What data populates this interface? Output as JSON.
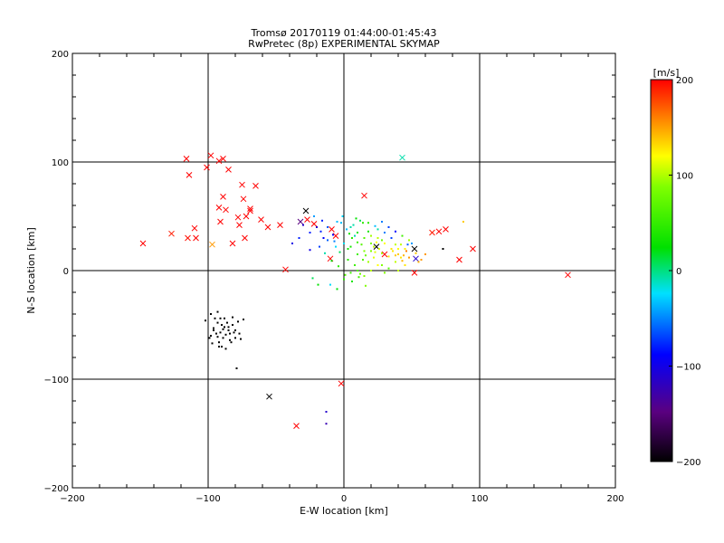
{
  "chart_data": {
    "type": "scatter",
    "title": "Tromsø 20170119 01:44:00-01:45:43",
    "subtitle": "RwPretec (8p) EXPERIMENTAL SKYMAP",
    "xlabel": "E-W location [km]",
    "ylabel": "N-S location [km]",
    "xlim": [
      -200,
      200
    ],
    "ylim": [
      -200,
      200
    ],
    "xticks": [
      -200,
      -100,
      0,
      100,
      200
    ],
    "yticks": [
      -200,
      -100,
      0,
      100,
      200
    ],
    "xtick_labels": [
      "−200",
      "−100",
      "0",
      "100",
      "200"
    ],
    "ytick_labels": [
      "−200",
      "−100",
      "0",
      "100",
      "200"
    ],
    "grid": true,
    "colorbar": {
      "label": "[m/s]",
      "range": [
        -200,
        200
      ],
      "ticks": [
        200,
        100,
        0,
        -100,
        -200
      ],
      "tick_labels": [
        "200",
        "100",
        "0",
        "−100",
        "−200"
      ],
      "colormap": "rainbow (black-violet-blue-cyan-green-yellow-red)"
    },
    "series": [
      {
        "marker": "x",
        "points": [
          [
            -148,
            25
          ],
          [
            -127,
            34
          ],
          [
            -116,
            103
          ],
          [
            -114,
            88
          ],
          [
            -115,
            30
          ],
          [
            -110,
            39
          ],
          [
            -109,
            30
          ],
          [
            -101,
            95
          ],
          [
            -98,
            106
          ],
          [
            -97,
            24
          ],
          [
            -92,
            101
          ],
          [
            -89,
            103
          ],
          [
            -91,
            45
          ],
          [
            -92,
            58
          ],
          [
            -89,
            68
          ],
          [
            -87,
            56
          ],
          [
            -85,
            93
          ],
          [
            -82,
            25
          ],
          [
            -78,
            49
          ],
          [
            -77,
            42
          ],
          [
            -75,
            79
          ],
          [
            -74,
            66
          ],
          [
            -73,
            30
          ],
          [
            -72,
            50
          ],
          [
            -69,
            55
          ],
          [
            -69,
            57
          ],
          [
            -65,
            78
          ],
          [
            -61,
            47
          ],
          [
            -56,
            40
          ],
          [
            -47,
            42
          ],
          [
            -43,
            1
          ],
          [
            -32,
            45
          ],
          [
            -27,
            47
          ],
          [
            -22,
            43
          ],
          [
            -28,
            55
          ],
          [
            -10,
            11
          ],
          [
            -9,
            38
          ],
          [
            -6,
            32
          ],
          [
            -2,
            -104
          ],
          [
            15,
            69
          ],
          [
            24,
            22
          ],
          [
            30,
            15
          ],
          [
            43,
            104
          ],
          [
            52,
            -2
          ],
          [
            52,
            20
          ],
          [
            53,
            11
          ],
          [
            65,
            35
          ],
          [
            70,
            36
          ],
          [
            75,
            38
          ],
          [
            85,
            10
          ],
          [
            95,
            20
          ],
          [
            165,
            -4
          ],
          [
            -35,
            -143
          ],
          [
            -55,
            -116
          ]
        ],
        "values": [
          200,
          190,
          200,
          200,
          195,
          200,
          200,
          200,
          200,
          140,
          200,
          200,
          200,
          200,
          200,
          200,
          200,
          200,
          200,
          200,
          200,
          200,
          200,
          200,
          200,
          200,
          200,
          200,
          200,
          200,
          200,
          -150,
          200,
          200,
          -200,
          200,
          200,
          200,
          200,
          200,
          -200,
          200,
          -20,
          200,
          -200,
          -120,
          190,
          200,
          200,
          200,
          200,
          200,
          200,
          -200
        ]
      },
      {
        "marker": "dot",
        "points": [
          [
            -93,
            -48
          ],
          [
            -96,
            -53
          ],
          [
            -91,
            -57
          ],
          [
            -98,
            -60
          ],
          [
            -85,
            -55
          ],
          [
            -80,
            -62
          ],
          [
            -92,
            -66
          ],
          [
            -88,
            -52
          ],
          [
            -84,
            -58
          ],
          [
            -90,
            -70
          ],
          [
            -95,
            -44
          ],
          [
            -82,
            -50
          ],
          [
            -77,
            -58
          ],
          [
            -89,
            -62
          ],
          [
            -94,
            -58
          ],
          [
            -86,
            -48
          ],
          [
            -91,
            -44
          ],
          [
            -97,
            -67
          ],
          [
            -83,
            -66
          ],
          [
            -87,
            -72
          ],
          [
            -80,
            -55
          ],
          [
            -98,
            -40
          ],
          [
            -93,
            -38
          ],
          [
            -76,
            -63
          ],
          [
            -89,
            -54
          ],
          [
            -82,
            -43
          ],
          [
            -79,
            -90
          ],
          [
            -85,
            -52
          ],
          [
            -102,
            -46
          ],
          [
            -90,
            -50
          ],
          [
            -87,
            -59
          ],
          [
            -93,
            -61
          ],
          [
            -74,
            -45
          ],
          [
            -84,
            -64
          ],
          [
            -96,
            -55
          ],
          [
            -88,
            -44
          ],
          [
            -81,
            -57
          ],
          [
            -99,
            -62
          ],
          [
            -78,
            -47
          ],
          [
            -92,
            -70
          ],
          [
            -20,
            40
          ],
          [
            -15,
            30
          ],
          [
            -25,
            35
          ],
          [
            -5,
            45
          ],
          [
            5,
            40
          ],
          [
            10,
            35
          ],
          [
            15,
            30
          ],
          [
            20,
            25
          ],
          [
            25,
            30
          ],
          [
            30,
            25
          ],
          [
            35,
            20
          ],
          [
            40,
            15
          ],
          [
            45,
            20
          ],
          [
            50,
            25
          ],
          [
            0,
            25
          ],
          [
            -3,
            17
          ],
          [
            3,
            10
          ],
          [
            8,
            5
          ],
          [
            12,
            -3
          ],
          [
            18,
            8
          ],
          [
            22,
            12
          ],
          [
            28,
            5
          ],
          [
            33,
            2
          ],
          [
            38,
            8
          ],
          [
            42,
            12
          ],
          [
            5,
            22
          ],
          [
            10,
            15
          ],
          [
            15,
            18
          ],
          [
            20,
            32
          ],
          [
            25,
            38
          ],
          [
            30,
            35
          ],
          [
            35,
            30
          ],
          [
            -10,
            -13
          ],
          [
            -5,
            -17
          ],
          [
            0,
            -8
          ],
          [
            10,
            0
          ],
          [
            15,
            -5
          ],
          [
            20,
            0
          ],
          [
            25,
            5
          ],
          [
            -18,
            22
          ],
          [
            -12,
            28
          ],
          [
            -8,
            33
          ],
          [
            2,
            38
          ],
          [
            7,
            42
          ],
          [
            12,
            46
          ],
          [
            18,
            44
          ],
          [
            23,
            41
          ],
          [
            28,
            45
          ],
          [
            33,
            40
          ],
          [
            38,
            36
          ],
          [
            43,
            32
          ],
          [
            48,
            28
          ],
          [
            53,
            16
          ],
          [
            57,
            10
          ],
          [
            -22,
            50
          ],
          [
            -1,
            50
          ],
          [
            9,
            48
          ],
          [
            14,
            44
          ],
          [
            -14,
            16
          ],
          [
            -9,
            9
          ],
          [
            -4,
            4
          ],
          [
            1,
            -4
          ],
          [
            6,
            -10
          ],
          [
            11,
            -6
          ],
          [
            16,
            -14
          ],
          [
            -17,
            36
          ],
          [
            -7,
            27
          ],
          [
            3,
            20
          ],
          [
            13,
            24
          ],
          [
            23,
            17
          ],
          [
            33,
            13
          ],
          [
            43,
            9
          ],
          [
            47,
            24
          ],
          [
            -2,
            44
          ],
          [
            8,
            32
          ],
          [
            18,
            36
          ],
          [
            28,
            28
          ],
          [
            38,
            24
          ],
          [
            -25,
            19
          ],
          [
            -30,
            42
          ],
          [
            -23,
            -7
          ],
          [
            -19,
            -13
          ],
          [
            5,
            -2
          ],
          [
            30,
            -2
          ],
          [
            40,
            0
          ],
          [
            45,
            5
          ],
          [
            55,
            8
          ],
          [
            60,
            15
          ],
          [
            -33,
            30
          ],
          [
            -38,
            25
          ],
          [
            20,
            18
          ],
          [
            22,
            22
          ],
          [
            24,
            26
          ],
          [
            26,
            20
          ],
          [
            28,
            16
          ],
          [
            14,
            10
          ],
          [
            16,
            14
          ],
          [
            10,
            26
          ],
          [
            6,
            30
          ],
          [
            4,
            34
          ],
          [
            -6,
            22
          ],
          [
            -12,
            40
          ],
          [
            -16,
            46
          ],
          [
            36,
            18
          ],
          [
            38,
            14
          ],
          [
            40,
            20
          ],
          [
            42,
            24
          ],
          [
            44,
            14
          ],
          [
            46,
            18
          ],
          [
            48,
            12
          ],
          [
            -13,
            -130
          ],
          [
            -13,
            -141
          ],
          [
            73,
            20
          ],
          [
            88,
            45
          ]
        ],
        "values": [
          -200,
          -200,
          -200,
          -200,
          -200,
          -200,
          -200,
          -200,
          -200,
          -200,
          -200,
          -200,
          -200,
          -200,
          -200,
          -200,
          -200,
          -200,
          -200,
          -200,
          -200,
          -200,
          -200,
          -200,
          -200,
          -200,
          -200,
          -200,
          -200,
          -200,
          -200,
          -200,
          -200,
          -200,
          -200,
          -200,
          -200,
          -200,
          -200,
          -200,
          -120,
          -100,
          -90,
          -40,
          -20,
          10,
          40,
          60,
          80,
          100,
          110,
          120,
          105,
          -50,
          -30,
          -10,
          20,
          30,
          50,
          70,
          90,
          60,
          40,
          80,
          110,
          10,
          30,
          60,
          70,
          -20,
          -60,
          -80,
          -30,
          0,
          20,
          40,
          60,
          80,
          100,
          -80,
          -70,
          -100,
          -40,
          -20,
          -10,
          20,
          -40,
          -60,
          -80,
          -100,
          30,
          70,
          120,
          140,
          -50,
          -30,
          0,
          20,
          -20,
          0,
          20,
          40,
          10,
          30,
          60,
          -90,
          -60,
          10,
          40,
          90,
          110,
          130,
          -70,
          -40,
          -20,
          10,
          50,
          80,
          -110,
          -120,
          -10,
          0,
          30,
          60,
          80,
          110,
          130,
          140,
          -90,
          -110,
          60,
          80,
          100,
          90,
          70,
          40,
          50,
          30,
          20,
          10,
          -30,
          -70,
          -90,
          110,
          120,
          100,
          80,
          130,
          150,
          140,
          -120,
          -130,
          -200,
          120
        ]
      }
    ]
  }
}
